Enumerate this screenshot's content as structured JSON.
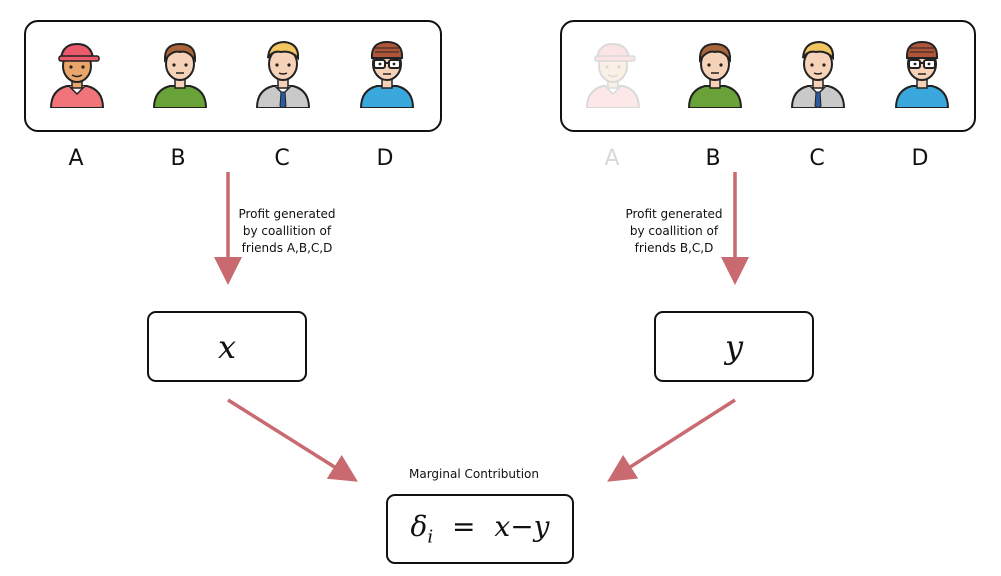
{
  "left_panel": {
    "players": [
      {
        "label": "A",
        "faded": false
      },
      {
        "label": "B",
        "faded": false
      },
      {
        "label": "C",
        "faded": false
      },
      {
        "label": "D",
        "faded": false
      }
    ],
    "note_lines": [
      "Profit generated",
      "by coallition of",
      "friends A,B,C,D"
    ],
    "value": "x"
  },
  "right_panel": {
    "players": [
      {
        "label": "A",
        "faded": true
      },
      {
        "label": "B",
        "faded": false
      },
      {
        "label": "C",
        "faded": false
      },
      {
        "label": "D",
        "faded": false
      }
    ],
    "note_lines": [
      "Profit generated",
      "by coallition of",
      "friends B,C,D"
    ],
    "value": "y"
  },
  "result": {
    "title": "Marginal Contribution",
    "delta": "δ",
    "subscript": "i",
    "equals": "=",
    "x": "x",
    "minus": "−",
    "y": "y"
  },
  "colors": {
    "arrow": "#c86a70",
    "person_a_shirt": "#f0747a",
    "person_b_shirt": "#6aa23a",
    "person_c_shirt": "#c9c9c9",
    "person_d_shirt": "#3aa8dc"
  }
}
